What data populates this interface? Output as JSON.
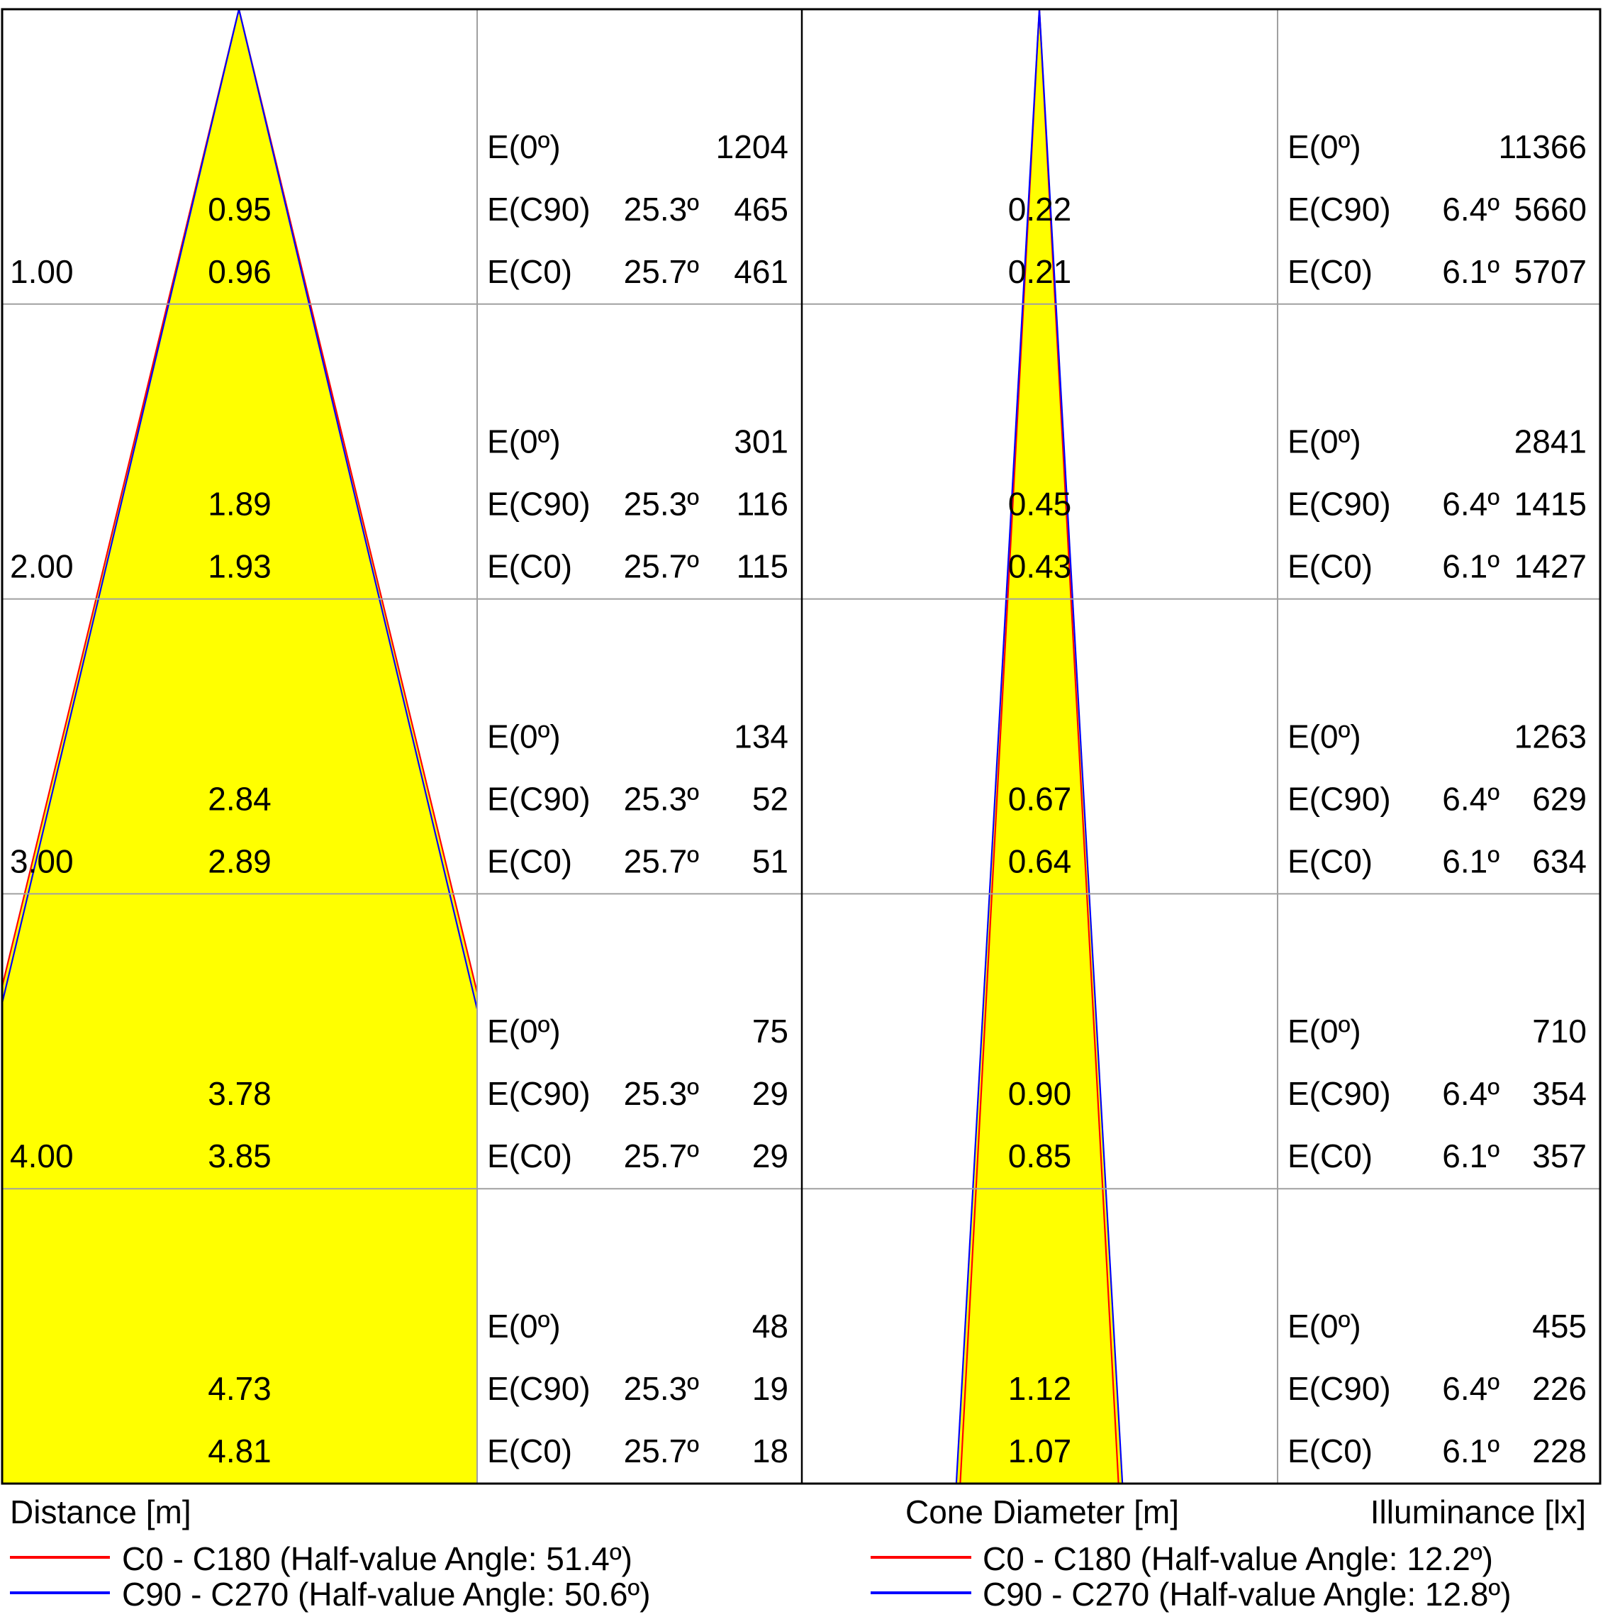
{
  "chart_data": [
    {
      "type": "area",
      "name": "cone-diagram-left",
      "distances": [
        "1.00",
        "2.00",
        "3.00",
        "4.00",
        ""
      ],
      "distance_values": [
        1,
        2,
        3,
        4,
        5
      ],
      "cone_c90_labels": [
        "0.95",
        "1.89",
        "2.84",
        "3.78",
        "4.73"
      ],
      "cone_c0_labels": [
        "0.96",
        "1.93",
        "2.89",
        "3.85",
        "4.81"
      ],
      "cone_c90_values": [
        0.95,
        1.89,
        2.84,
        3.78,
        4.73
      ],
      "cone_c0_values": [
        0.96,
        1.93,
        2.89,
        3.85,
        4.81
      ],
      "visible_half_width_m": 1.6,
      "illuminance": [
        {
          "e0_label": "E(0º)",
          "e0": "1204",
          "c90_label": "E(C90)",
          "c90_angle": "25.3º",
          "c90": "465",
          "c0_label": "E(C0)",
          "c0_angle": "25.7º",
          "c0": "461"
        },
        {
          "e0_label": "E(0º)",
          "e0": "301",
          "c90_label": "E(C90)",
          "c90_angle": "25.3º",
          "c90": "116",
          "c0_label": "E(C0)",
          "c0_angle": "25.7º",
          "c0": "115"
        },
        {
          "e0_label": "E(0º)",
          "e0": "134",
          "c90_label": "E(C90)",
          "c90_angle": "25.3º",
          "c90": "52",
          "c0_label": "E(C0)",
          "c0_angle": "25.7º",
          "c0": "51"
        },
        {
          "e0_label": "E(0º)",
          "e0": "75",
          "c90_label": "E(C90)",
          "c90_angle": "25.3º",
          "c90": "29",
          "c0_label": "E(C0)",
          "c0_angle": "25.7º",
          "c0": "29"
        },
        {
          "e0_label": "E(0º)",
          "e0": "48",
          "c90_label": "E(C90)",
          "c90_angle": "25.3º",
          "c90": "19",
          "c0_label": "E(C0)",
          "c0_angle": "25.7º",
          "c0": "18"
        }
      ],
      "xlabel": "Distance [m]",
      "legend": [
        {
          "label": "C0 - C180 (Half-value Angle: 51.4º)",
          "color": "#ff0000"
        },
        {
          "label": "C90 - C270 (Half-value Angle: 50.6º)",
          "color": "#0000ff"
        }
      ],
      "fill_color": "#ffff00"
    },
    {
      "type": "area",
      "name": "cone-diagram-right",
      "cone_c90_labels": [
        "0.22",
        "0.45",
        "0.67",
        "0.90",
        "1.12"
      ],
      "cone_c0_labels": [
        "0.21",
        "0.43",
        "0.64",
        "0.85",
        "1.07"
      ],
      "cone_c90_values": [
        0.22,
        0.45,
        0.67,
        0.9,
        1.12
      ],
      "cone_c0_values": [
        0.21,
        0.43,
        0.64,
        0.85,
        1.07
      ],
      "visible_half_width_m": 1.6,
      "illuminance": [
        {
          "e0_label": "E(0º)",
          "e0": "11366",
          "c90_label": "E(C90)",
          "c90_angle": "6.4º",
          "c90": "5660",
          "c0_label": "E(C0)",
          "c0_angle": "6.1º",
          "c0": "5707"
        },
        {
          "e0_label": "E(0º)",
          "e0": "2841",
          "c90_label": "E(C90)",
          "c90_angle": "6.4º",
          "c90": "1415",
          "c0_label": "E(C0)",
          "c0_angle": "6.1º",
          "c0": "1427"
        },
        {
          "e0_label": "E(0º)",
          "e0": "1263",
          "c90_label": "E(C90)",
          "c90_angle": "6.4º",
          "c90": "629",
          "c0_label": "E(C0)",
          "c0_angle": "6.1º",
          "c0": "634"
        },
        {
          "e0_label": "E(0º)",
          "e0": "710",
          "c90_label": "E(C90)",
          "c90_angle": "6.4º",
          "c90": "354",
          "c0_label": "E(C0)",
          "c0_angle": "6.1º",
          "c0": "357"
        },
        {
          "e0_label": "E(0º)",
          "e0": "455",
          "c90_label": "E(C90)",
          "c90_angle": "6.4º",
          "c90": "226",
          "c0_label": "E(C0)",
          "c0_angle": "6.1º",
          "c0": "228"
        }
      ],
      "xlabel": "Cone Diameter [m]",
      "ylabel": "Illuminance [lx]",
      "legend": [
        {
          "label": "C0 - C180 (Half-value Angle: 12.2º)",
          "color": "#ff0000"
        },
        {
          "label": "C90 - C270 (Half-value Angle: 12.8º)",
          "color": "#0000ff"
        }
      ],
      "fill_color": "#ffff00"
    }
  ],
  "colors": {
    "border": "#000000",
    "grid": "#a0a0a0",
    "fill": "#ffff00",
    "c0": "#ff0000",
    "c90": "#0000ff"
  }
}
